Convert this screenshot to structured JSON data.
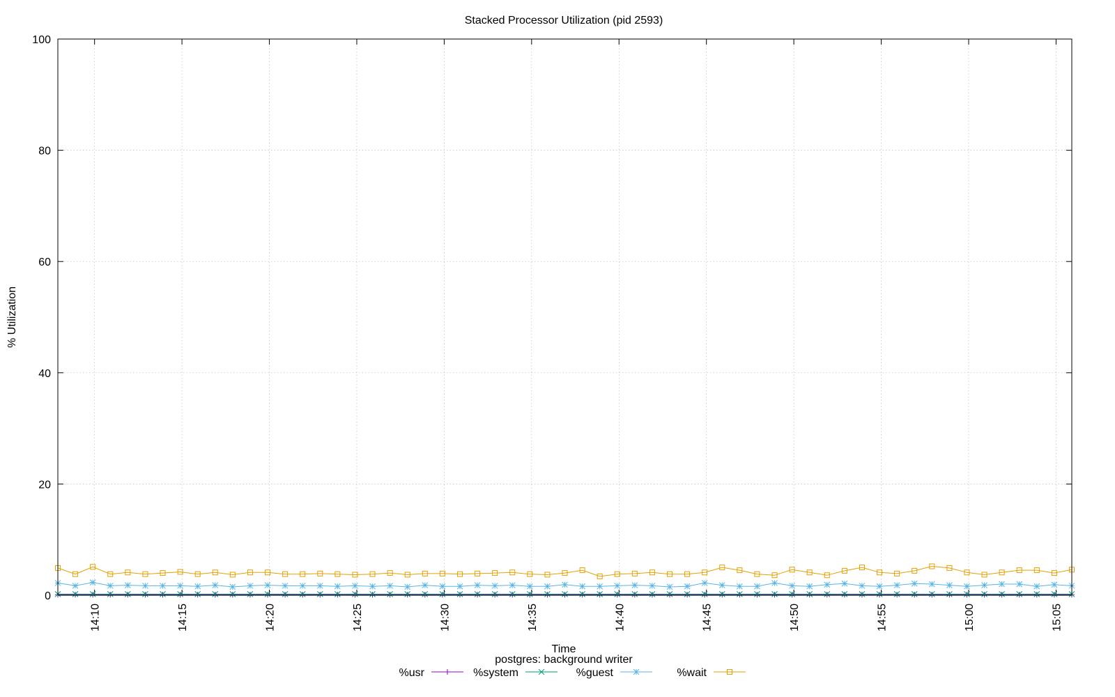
{
  "chart_data": {
    "type": "line",
    "title": "Stacked Processor Utilization (pid 2593)",
    "xlabel": "Time",
    "ylabel": "% Utilization",
    "subtitle": "postgres: background writer",
    "ylim": [
      0,
      100
    ],
    "y_ticks": [
      "0",
      "20",
      "40",
      "60",
      "80",
      "100"
    ],
    "x_tick_labels": [
      "14:10",
      "14:15",
      "14:20",
      "14:25",
      "14:30",
      "14:35",
      "14:40",
      "14:45",
      "14:50",
      "14:55",
      "15:00",
      "15:05"
    ],
    "grid": true,
    "legend_position": "bottom",
    "series": [
      {
        "name": "%usr",
        "color": "#9400d3",
        "marker": "plus",
        "values": [
          0.1,
          0.1,
          0.1,
          0.1,
          0.1,
          0.1,
          0.1,
          0.1,
          0.1,
          0.1,
          0.1,
          0.1,
          0.1,
          0.1,
          0.1,
          0.1,
          0.1,
          0.1,
          0.1,
          0.1,
          0.1,
          0.1,
          0.1,
          0.1,
          0.1,
          0.1,
          0.1,
          0.1,
          0.1,
          0.1,
          0.1,
          0.1,
          0.1,
          0.1,
          0.1,
          0.1,
          0.1,
          0.1,
          0.1,
          0.1,
          0.1,
          0.1,
          0.1,
          0.1,
          0.1,
          0.1,
          0.1,
          0.1,
          0.1,
          0.1,
          0.1,
          0.1,
          0.1,
          0.1,
          0.1,
          0.1,
          0.1,
          0.1,
          0.1
        ]
      },
      {
        "name": "%system",
        "color": "#009e73",
        "marker": "cross",
        "values": [
          0.2,
          0.2,
          0.2,
          0.2,
          0.2,
          0.2,
          0.2,
          0.2,
          0.2,
          0.2,
          0.2,
          0.2,
          0.2,
          0.2,
          0.2,
          0.2,
          0.2,
          0.2,
          0.2,
          0.2,
          0.2,
          0.2,
          0.2,
          0.2,
          0.2,
          0.2,
          0.2,
          0.2,
          0.2,
          0.2,
          0.2,
          0.2,
          0.2,
          0.2,
          0.2,
          0.2,
          0.2,
          0.2,
          0.2,
          0.2,
          0.2,
          0.2,
          0.2,
          0.2,
          0.2,
          0.2,
          0.2,
          0.2,
          0.2,
          0.2,
          0.2,
          0.2,
          0.2,
          0.2,
          0.2,
          0.2,
          0.2,
          0.2,
          0.2
        ]
      },
      {
        "name": "%guest",
        "color": "#56b4e9",
        "marker": "star",
        "values": [
          2.2,
          1.7,
          2.3,
          1.7,
          1.8,
          1.7,
          1.7,
          1.7,
          1.6,
          1.8,
          1.5,
          1.7,
          1.8,
          1.7,
          1.7,
          1.7,
          1.6,
          1.7,
          1.6,
          1.7,
          1.5,
          1.8,
          1.6,
          1.6,
          1.8,
          1.7,
          1.8,
          1.6,
          1.6,
          1.9,
          1.6,
          1.6,
          1.7,
          1.8,
          1.7,
          1.5,
          1.6,
          2.2,
          1.8,
          1.6,
          1.6,
          2.2,
          1.7,
          1.6,
          1.9,
          2.1,
          1.7,
          1.6,
          1.8,
          2.1,
          2.0,
          1.8,
          1.6,
          1.8,
          2.0,
          2.0,
          1.6,
          1.9,
          1.7
        ]
      },
      {
        "name": "%wait",
        "color": "#e69f00",
        "marker": "square",
        "values": [
          4.9,
          3.8,
          5.1,
          3.8,
          4.1,
          3.8,
          4.0,
          4.2,
          3.8,
          4.1,
          3.7,
          4.1,
          4.1,
          3.8,
          3.8,
          3.9,
          3.8,
          3.7,
          3.8,
          4.0,
          3.7,
          3.9,
          3.9,
          3.8,
          3.9,
          4.0,
          4.1,
          3.8,
          3.7,
          4.0,
          4.5,
          3.4,
          3.8,
          3.9,
          4.1,
          3.8,
          3.8,
          4.1,
          5.0,
          4.5,
          3.8,
          3.6,
          4.6,
          4.1,
          3.6,
          4.4,
          5.0,
          4.1,
          3.9,
          4.4,
          5.2,
          4.9,
          4.1,
          3.7,
          4.1,
          4.5,
          4.5,
          4.0,
          4.6
        ]
      }
    ]
  }
}
